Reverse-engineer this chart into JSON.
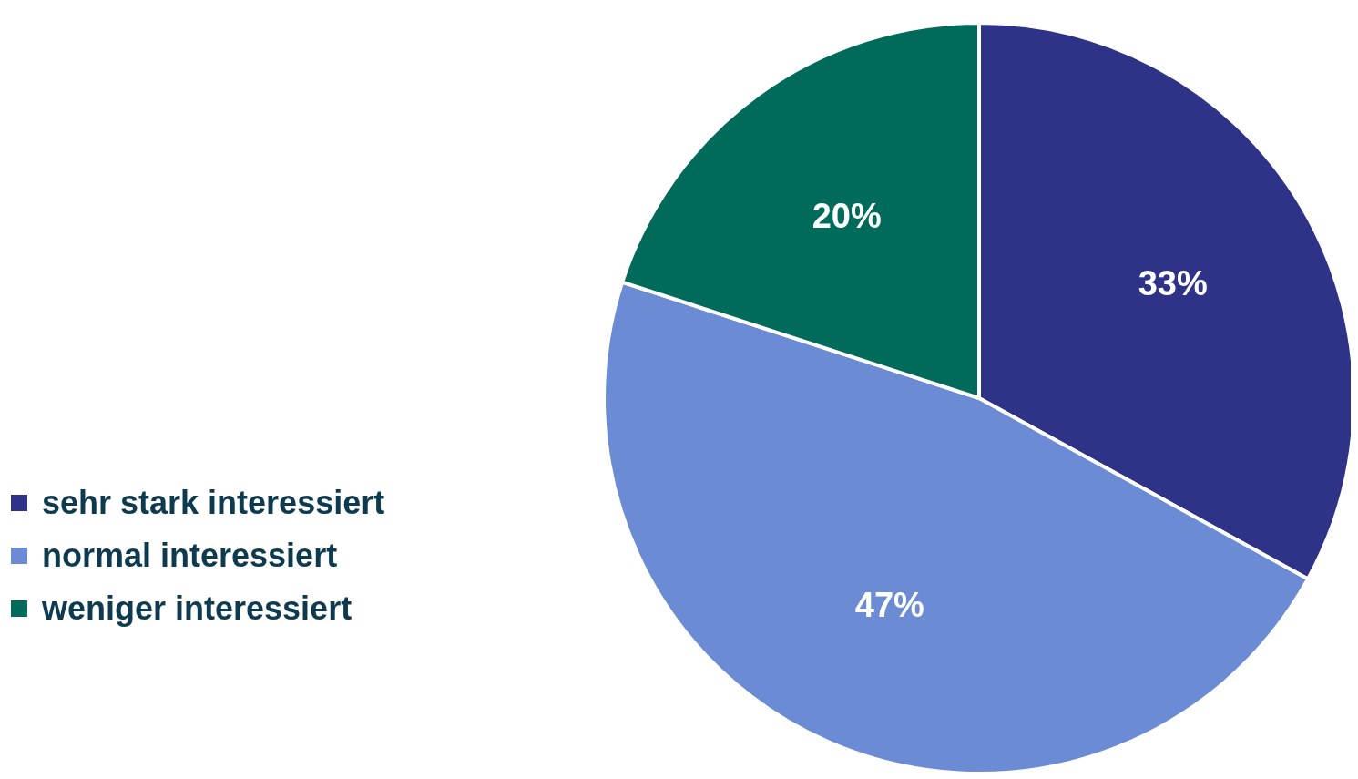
{
  "chart_data": {
    "type": "pie",
    "categories": [
      "sehr stark interessiert",
      "normal interessiert",
      "weniger interessiert"
    ],
    "values": [
      33,
      47,
      20
    ],
    "colors": [
      "#2e3388",
      "#6b8cd4",
      "#006b5b"
    ],
    "value_labels": [
      "33%",
      "47%",
      "20%"
    ],
    "legend": "left"
  }
}
